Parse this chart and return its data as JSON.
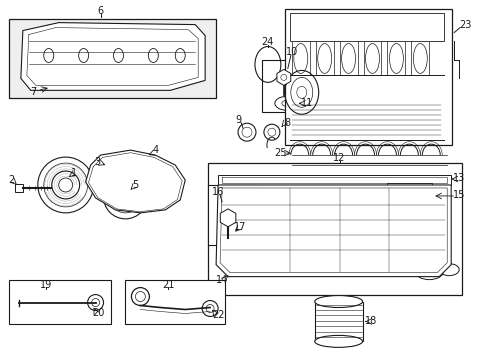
{
  "bg": "#ffffff",
  "lc": "#1a1a1a",
  "fs": 7,
  "fw": 4.89,
  "fh": 3.6,
  "dpi": 100
}
